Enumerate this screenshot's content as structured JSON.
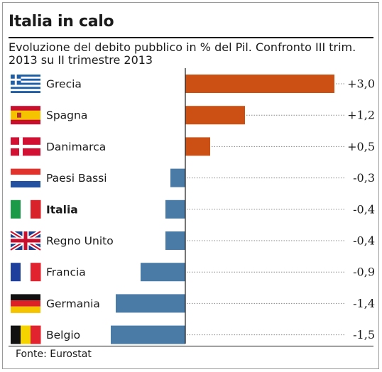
{
  "source": "Fonte: Eurostat",
  "colors": {
    "positive": "#cc5014",
    "negative": "#4a7aa6",
    "leader": "#8a8a8a",
    "axis": "#1a1a1a"
  },
  "chart_data": {
    "type": "bar",
    "orientation": "horizontal",
    "title": "Italia in calo",
    "subtitle": "Evoluzione del debito pubblico in % del Pil. Confronto III trim. 2013 su II trimestre 2013",
    "xlabel": "",
    "ylabel": "",
    "xlim": [
      -1.5,
      3.0
    ],
    "grid": false,
    "legend": "none",
    "categories": [
      "Grecia",
      "Spagna",
      "Danimarca",
      "Paesi Bassi",
      "Italia",
      "Regno Unito",
      "Francia",
      "Germania",
      "Belgio"
    ],
    "values": [
      3.0,
      1.2,
      0.5,
      -0.3,
      -0.4,
      -0.4,
      -0.9,
      -1.4,
      -1.5
    ],
    "value_labels": [
      "+3,0",
      "+1,2",
      "+0,5",
      "-0,3",
      "-0,4",
      "-0,4",
      "-0,9",
      "-1,4",
      "-1,5"
    ],
    "highlight": "Italia",
    "flags": [
      "greece-flag-icon",
      "spain-flag-icon",
      "denmark-flag-icon",
      "netherlands-flag-icon",
      "italy-flag-icon",
      "uk-flag-icon",
      "france-flag-icon",
      "germany-flag-icon",
      "belgium-flag-icon"
    ]
  }
}
